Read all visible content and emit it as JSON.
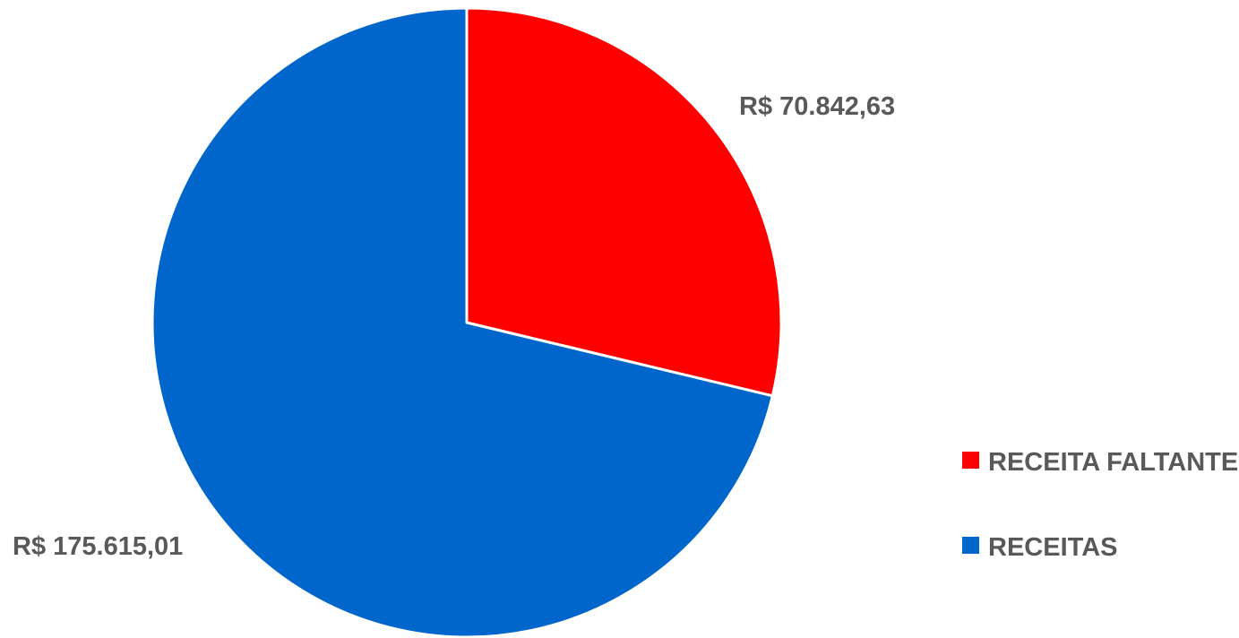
{
  "chart_data": {
    "type": "pie",
    "slices": [
      {
        "name": "RECEITA FALTANTE",
        "value": 70842.63,
        "label": "R$ 70.842,63",
        "color": "#ff0000"
      },
      {
        "name": "RECEITAS",
        "value": 175615.01,
        "label": "R$ 175.615,01",
        "color": "#0066cc"
      }
    ],
    "start_angle_deg": 0,
    "direction": "clockwise",
    "legend": {
      "placement": "right",
      "entries": [
        "RECEITA FALTANTE",
        "RECEITAS"
      ]
    }
  }
}
